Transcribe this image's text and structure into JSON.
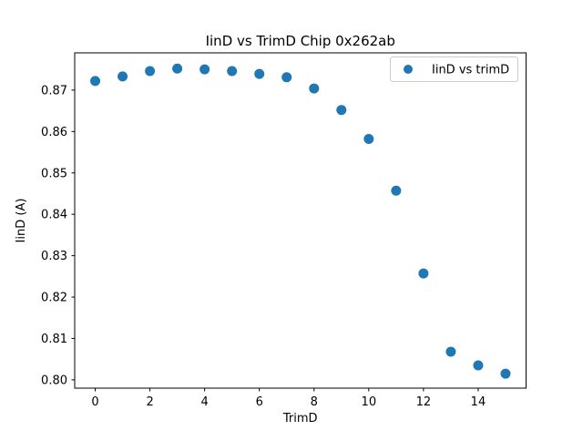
{
  "figure": {
    "background": "#ffffff"
  },
  "chart_data": {
    "type": "scatter",
    "title": "IinD vs TrimD Chip 0x262ab",
    "xlabel": "TrimD",
    "ylabel": "IinD (A)",
    "legend": {
      "position": "upper right",
      "entries": [
        {
          "label": "IinD vs trimD",
          "marker": "circle",
          "color": "#1f77b4"
        }
      ]
    },
    "series": [
      {
        "name": "IinD vs trimD",
        "marker_color": "#1f77b4",
        "x": [
          0,
          1,
          2,
          3,
          4,
          5,
          6,
          7,
          8,
          9,
          10,
          11,
          12,
          13,
          14,
          15
        ],
        "y": [
          0.8722,
          0.8733,
          0.8746,
          0.8752,
          0.875,
          0.8746,
          0.8739,
          0.8731,
          0.8704,
          0.8652,
          0.8582,
          0.8457,
          0.8257,
          0.8068,
          0.8035,
          0.8015
        ]
      }
    ],
    "xlim": [
      -0.75,
      15.75
    ],
    "ylim": [
      0.798,
      0.879
    ],
    "xticks": [
      0,
      2,
      4,
      6,
      8,
      10,
      12,
      14
    ],
    "xtick_labels": [
      "0",
      "2",
      "4",
      "6",
      "8",
      "10",
      "12",
      "14"
    ],
    "yticks": [
      0.8,
      0.81,
      0.82,
      0.83,
      0.84,
      0.85,
      0.86,
      0.87
    ],
    "ytick_labels": [
      "0.80",
      "0.81",
      "0.82",
      "0.83",
      "0.84",
      "0.85",
      "0.86",
      "0.87"
    ],
    "grid": false,
    "spine_color": "#000000",
    "legend_border_color": "#cccccc",
    "legend_background": "#ffffff"
  }
}
